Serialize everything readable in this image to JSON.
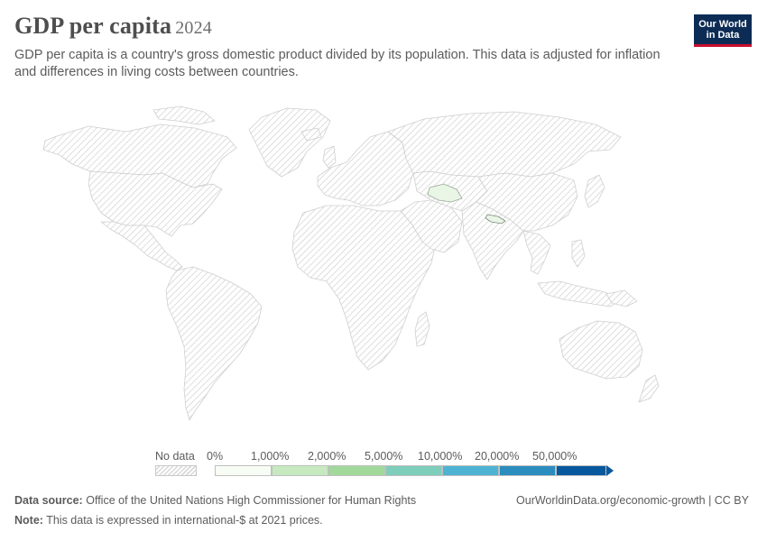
{
  "header": {
    "title": "GDP per capita",
    "year": "2024",
    "subtitle": "GDP per capita is a country's gross domestic product divided by its population. This data is adjusted for inflation and differences in living costs between countries."
  },
  "logo": {
    "line1": "Our World",
    "line2": "in Data",
    "bg_color": "#0d2c55",
    "accent_color": "#c8102e"
  },
  "map": {
    "nodata_fill": "hatched-grey",
    "highlighted_countries": [
      {
        "name": "Turkmenistan",
        "color": "#e9f5e5"
      },
      {
        "name": "Nepal",
        "color": "#e9f5e5"
      }
    ]
  },
  "legend": {
    "nodata_label": "No data",
    "bins": [
      {
        "label": "0%",
        "color": "#f7fcf5"
      },
      {
        "label": "1,000%",
        "color": "#c7e9c0"
      },
      {
        "label": "2,000%",
        "color": "#a1d99b"
      },
      {
        "label": "5,000%",
        "color": "#7fcdbb"
      },
      {
        "label": "10,000%",
        "color": "#4eb3d3"
      },
      {
        "label": "20,000%",
        "color": "#2b8cbe"
      },
      {
        "label": "50,000%",
        "color": "#08589e"
      }
    ]
  },
  "footer": {
    "source_label": "Data source:",
    "source_text": "Office of the United Nations High Commissioner for Human Rights",
    "note_label": "Note:",
    "note_text": "This data is expressed in international-$ at 2021 prices.",
    "url": "OurWorldinData.org/economic-growth | CC BY"
  }
}
